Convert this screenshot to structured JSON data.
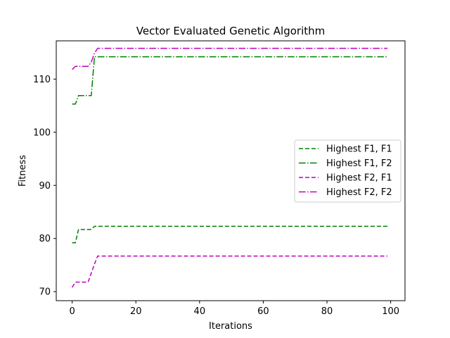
{
  "chart_data": {
    "type": "line",
    "title": "Vector Evaluated Genetic Algorithm",
    "xlabel": "Iterations",
    "ylabel": "Fitness",
    "xlim": [
      -5,
      104.5
    ],
    "ylim": [
      68.3,
      117.2
    ],
    "xticks": [
      0,
      20,
      40,
      60,
      80,
      100
    ],
    "yticks": [
      70,
      80,
      90,
      100,
      110
    ],
    "legend_position": "center-right",
    "grid": false,
    "series": [
      {
        "name": "Highest F1, F1",
        "color": "#008000",
        "dash": "dashed",
        "x": [
          0,
          1,
          2,
          3,
          4,
          5,
          6,
          7,
          8,
          99
        ],
        "y": [
          79.2,
          79.2,
          81.7,
          81.7,
          81.7,
          81.7,
          81.7,
          82.3,
          82.3,
          82.3
        ]
      },
      {
        "name": "Highest F1, F2",
        "color": "#008000",
        "dash": "dashdot",
        "x": [
          0,
          1,
          2,
          3,
          4,
          5,
          6,
          7,
          99
        ],
        "y": [
          105.3,
          105.3,
          106.9,
          106.9,
          106.9,
          106.9,
          106.9,
          114.2,
          114.2
        ]
      },
      {
        "name": "Highest F2, F1",
        "color": "#bf00bf",
        "dash": "dashed",
        "x": [
          0,
          1,
          2,
          3,
          4,
          5,
          6,
          7,
          8,
          99
        ],
        "y": [
          70.8,
          71.8,
          71.8,
          71.8,
          71.8,
          71.8,
          73.5,
          75.2,
          76.7,
          76.7
        ]
      },
      {
        "name": "Highest F2, F2",
        "color": "#bf00bf",
        "dash": "dashdot",
        "x": [
          0,
          1,
          2,
          3,
          4,
          5,
          6,
          7,
          8,
          99
        ],
        "y": [
          111.8,
          112.4,
          112.4,
          112.4,
          112.4,
          112.4,
          113.2,
          114.9,
          115.8,
          115.8
        ]
      }
    ]
  }
}
